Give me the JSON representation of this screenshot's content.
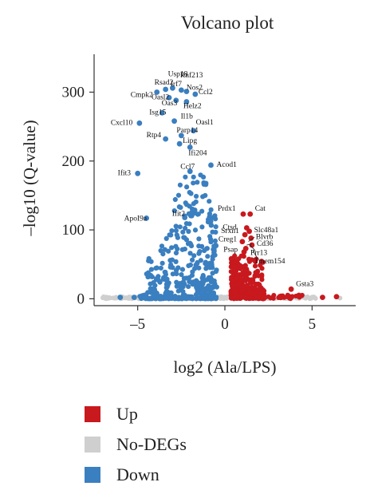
{
  "chart_data": {
    "type": "scatter",
    "title": "Volcano plot",
    "xlabel": "log2 (Ala/LPS)",
    "ylabel": "–log10 (Q-value)",
    "xlim": [
      -7.5,
      7.5
    ],
    "ylim": [
      -10,
      355
    ],
    "xticks": [
      {
        "value": -5,
        "label": "–5"
      },
      {
        "value": 0,
        "label": "0"
      },
      {
        "value": 5,
        "label": "5"
      }
    ],
    "yticks": [
      {
        "value": 0,
        "label": "0"
      },
      {
        "value": 100,
        "label": "100"
      },
      {
        "value": 200,
        "label": "200"
      },
      {
        "value": 300,
        "label": "300"
      }
    ],
    "grid": false,
    "legend_position": "bottom-left",
    "colors": {
      "Up": "#c8191e",
      "No-DEGs": "#cfcfcf",
      "Down": "#3a7fc0"
    },
    "legend": [
      "Up",
      "No-DEGs",
      "Down"
    ],
    "series": [
      {
        "name": "Up",
        "points": [
          [
            1.05,
            123
          ],
          [
            1.45,
            123
          ],
          [
            1.25,
            103
          ],
          [
            1.4,
            98
          ],
          [
            1.15,
            93
          ],
          [
            1.5,
            88
          ],
          [
            1.0,
            83
          ],
          [
            1.55,
            78
          ],
          [
            1.2,
            73
          ],
          [
            1.1,
            68
          ],
          [
            3.8,
            14
          ],
          [
            5.6,
            2
          ],
          [
            6.4,
            3
          ]
        ],
        "labels": [
          {
            "text": "Prdx1",
            "x": 1.05,
            "y": 123
          },
          {
            "text": "Cat",
            "x": 1.45,
            "y": 123
          },
          {
            "text": "Ctsd",
            "x": 1.25,
            "y": 103
          },
          {
            "text": "Slc48a1",
            "x": 1.4,
            "y": 98
          },
          {
            "text": "Srxn1",
            "x": 1.15,
            "y": 93
          },
          {
            "text": "Blvrb",
            "x": 1.5,
            "y": 88
          },
          {
            "text": "Creg1",
            "x": 1.0,
            "y": 83
          },
          {
            "text": "Cd36",
            "x": 1.55,
            "y": 78
          },
          {
            "text": "Psap",
            "x": 1.2,
            "y": 73
          },
          {
            "text": "Prr13",
            "x": 1.1,
            "y": 68
          },
          {
            "text": "Tmem154",
            "x": 1.3,
            "y": 63
          },
          {
            "text": "Gsta3",
            "x": 3.8,
            "y": 14
          }
        ]
      },
      {
        "name": "No-DEGs",
        "points": [
          [
            -6.8,
            1
          ],
          [
            -5.5,
            0.5
          ],
          [
            -4.2,
            1
          ],
          [
            4.2,
            1
          ],
          [
            5.2,
            0.5
          ],
          [
            6.6,
            1
          ]
        ]
      },
      {
        "name": "Down",
        "points": [
          [
            -3.4,
            304
          ],
          [
            -2.5,
            303
          ],
          [
            -3.0,
            306
          ],
          [
            -2.2,
            301
          ],
          [
            -1.7,
            297
          ],
          [
            -3.9,
            300
          ],
          [
            -3.2,
            292
          ],
          [
            -2.8,
            288
          ],
          [
            -2.2,
            286
          ],
          [
            -3.6,
            270
          ],
          [
            -2.9,
            258
          ],
          [
            -4.9,
            255
          ],
          [
            -1.8,
            244
          ],
          [
            -2.5,
            237
          ],
          [
            -3.4,
            232
          ],
          [
            -2.6,
            225
          ],
          [
            -2.0,
            220
          ],
          [
            -0.8,
            194
          ],
          [
            -5.0,
            182
          ],
          [
            -2.0,
            185
          ],
          [
            -4.5,
            117
          ],
          [
            -2.3,
            118
          ],
          [
            -6.0,
            2
          ],
          [
            -5.2,
            2
          ]
        ],
        "labels": [
          {
            "text": "Usp18",
            "x": -2.9,
            "y": 314
          },
          {
            "text": "Rnf213",
            "x": -2.2,
            "y": 312
          },
          {
            "text": "Rsad2",
            "x": -3.4,
            "y": 304
          },
          {
            "text": "Irf7",
            "x": -2.8,
            "y": 304
          },
          {
            "text": "Nos2",
            "x": -2.2,
            "y": 301
          },
          {
            "text": "Cmpk2",
            "x": -3.9,
            "y": 300
          },
          {
            "text": "Ccl2",
            "x": -1.7,
            "y": 297
          },
          {
            "text": "Oasl2",
            "x": -3.2,
            "y": 292
          },
          {
            "text": "Oas3",
            "x": -2.8,
            "y": 288
          },
          {
            "text": "Helz2",
            "x": -2.2,
            "y": 286
          },
          {
            "text": "Isg15",
            "x": -3.6,
            "y": 270
          },
          {
            "text": "Il1b",
            "x": -2.9,
            "y": 258
          },
          {
            "text": "Cxcl10",
            "x": -4.9,
            "y": 255
          },
          {
            "text": "Oasl1",
            "x": -1.8,
            "y": 244
          },
          {
            "text": "Parp14",
            "x": -2.5,
            "y": 237
          },
          {
            "text": "Rtp4",
            "x": -3.4,
            "y": 232
          },
          {
            "text": "Lipg",
            "x": -2.6,
            "y": 225
          },
          {
            "text": "Ifi204",
            "x": -2.0,
            "y": 220
          },
          {
            "text": "Acod1",
            "x": -0.8,
            "y": 194
          },
          {
            "text": "Ccl7",
            "x": -2.0,
            "y": 185
          },
          {
            "text": "Ifit3",
            "x": -5.0,
            "y": 182
          },
          {
            "text": "ApoI9a",
            "x": -4.5,
            "y": 117
          },
          {
            "text": "Ifit2",
            "x": -2.3,
            "y": 118
          }
        ]
      }
    ]
  }
}
